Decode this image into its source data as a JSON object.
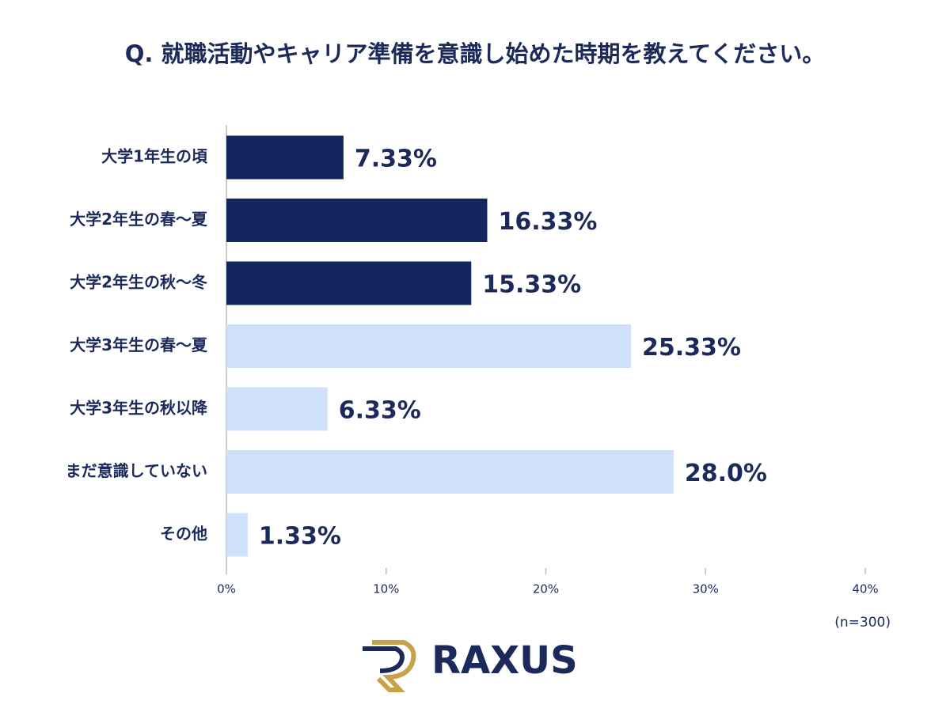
{
  "chart_data": {
    "type": "bar",
    "orientation": "horizontal",
    "title": "Q. 就職活動やキャリア準備を意識し始めた時期を教えてください。",
    "categories": [
      "大学1年生の頃",
      "大学2年生の春～夏",
      "大学2年生の秋～冬",
      "大学3年生の春～夏",
      "大学3年生の秋以降",
      "まだ意識していない",
      "その他"
    ],
    "values": [
      7.33,
      16.33,
      15.33,
      25.33,
      6.33,
      28.0,
      1.33
    ],
    "value_labels": [
      "7.33%",
      "16.33%",
      "15.33%",
      "25.33%",
      "6.33%",
      "28.0%",
      "1.33%"
    ],
    "colors": [
      "#13275e",
      "#13275e",
      "#13275e",
      "#cfe0fb",
      "#cfe0fb",
      "#cfe0fb",
      "#cfe0fb"
    ],
    "xlim": [
      0,
      40
    ],
    "xticks": [
      {
        "value": 0,
        "label": "0%"
      },
      {
        "value": 10,
        "label": "10%"
      },
      {
        "value": 20,
        "label": "20%"
      },
      {
        "value": 30,
        "label": "30%"
      },
      {
        "value": 40,
        "label": "40%"
      }
    ],
    "note": "(n=300)",
    "logo": "RAXUS"
  }
}
